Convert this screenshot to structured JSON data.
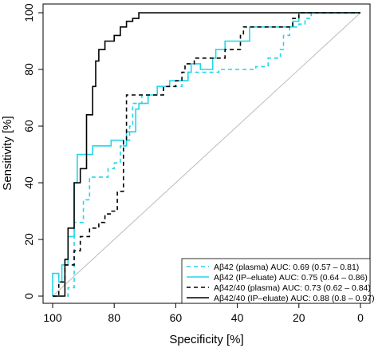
{
  "chart_data": {
    "type": "line",
    "xlabel": "Specificity [%]",
    "ylabel": "Sensitivity [%]",
    "xlim": [
      100,
      0
    ],
    "ylim": [
      0,
      100
    ],
    "x_reversed": true,
    "xticks": [
      "100",
      "80",
      "60",
      "40",
      "20",
      "0"
    ],
    "yticks": [
      "0",
      "20",
      "40",
      "60",
      "80",
      "100"
    ],
    "reference_line": {
      "from": [
        100,
        0
      ],
      "to": [
        0,
        100
      ],
      "color": "#bbbbbb"
    },
    "legend_position": "bottom-right",
    "series": [
      {
        "name": "Aβ42  (plasma) AUC: 0.69 (0.57 – 0.81)",
        "color": "#22d6e8",
        "style": "dashed",
        "points": [
          [
            100,
            0
          ],
          [
            95,
            0
          ],
          [
            95,
            3
          ],
          [
            93,
            3
          ],
          [
            93,
            26
          ],
          [
            90,
            26
          ],
          [
            90,
            34
          ],
          [
            88,
            34
          ],
          [
            88,
            42
          ],
          [
            82,
            42
          ],
          [
            82,
            45
          ],
          [
            80,
            45
          ],
          [
            80,
            47
          ],
          [
            78,
            47
          ],
          [
            78,
            53
          ],
          [
            76,
            53
          ],
          [
            76,
            55
          ],
          [
            75,
            55
          ],
          [
            75,
            60
          ],
          [
            74,
            60
          ],
          [
            74,
            68
          ],
          [
            71,
            68
          ],
          [
            71,
            71
          ],
          [
            64,
            71
          ],
          [
            64,
            74
          ],
          [
            58,
            74
          ],
          [
            58,
            76
          ],
          [
            56,
            76
          ],
          [
            56,
            79
          ],
          [
            46,
            79
          ],
          [
            46,
            80
          ],
          [
            34,
            80
          ],
          [
            34,
            81
          ],
          [
            30,
            81
          ],
          [
            30,
            84
          ],
          [
            26,
            84
          ],
          [
            26,
            87
          ],
          [
            25,
            87
          ],
          [
            25,
            92
          ],
          [
            23,
            92
          ],
          [
            23,
            95
          ],
          [
            20,
            95
          ],
          [
            20,
            96
          ],
          [
            18,
            96
          ],
          [
            18,
            98
          ],
          [
            16,
            98
          ],
          [
            16,
            100
          ],
          [
            0,
            100
          ]
        ]
      },
      {
        "name": "Aβ42  (IP–eluate) AUC: 0.75 (0.64 – 0.86)",
        "color": "#22d6e8",
        "style": "solid",
        "points": [
          [
            100,
            0
          ],
          [
            100,
            8
          ],
          [
            98,
            8
          ],
          [
            98,
            5
          ],
          [
            97,
            5
          ],
          [
            97,
            11
          ],
          [
            95,
            11
          ],
          [
            95,
            21
          ],
          [
            93,
            21
          ],
          [
            93,
            40
          ],
          [
            92,
            40
          ],
          [
            92,
            50
          ],
          [
            87,
            50
          ],
          [
            87,
            53
          ],
          [
            81,
            53
          ],
          [
            81,
            55
          ],
          [
            77,
            55
          ],
          [
            77,
            53
          ],
          [
            76,
            53
          ],
          [
            76,
            58
          ],
          [
            73,
            58
          ],
          [
            73,
            66
          ],
          [
            72,
            66
          ],
          [
            72,
            68
          ],
          [
            69,
            68
          ],
          [
            69,
            71
          ],
          [
            66,
            71
          ],
          [
            66,
            74
          ],
          [
            62,
            74
          ],
          [
            62,
            76
          ],
          [
            56,
            76
          ],
          [
            56,
            79
          ],
          [
            55,
            79
          ],
          [
            55,
            82
          ],
          [
            52,
            82
          ],
          [
            52,
            80
          ],
          [
            48,
            80
          ],
          [
            48,
            84
          ],
          [
            47,
            84
          ],
          [
            47,
            87
          ],
          [
            44,
            87
          ],
          [
            44,
            90
          ],
          [
            36,
            90
          ],
          [
            36,
            95
          ],
          [
            22,
            95
          ],
          [
            22,
            97
          ],
          [
            20,
            97
          ],
          [
            20,
            100
          ],
          [
            0,
            100
          ]
        ]
      },
      {
        "name": "Aβ42/40  (plasma) AUC: 0.73 (0.62 – 0.84)",
        "color": "#000000",
        "style": "dashed",
        "points": [
          [
            100,
            0
          ],
          [
            98,
            0
          ],
          [
            98,
            5
          ],
          [
            96,
            5
          ],
          [
            96,
            11
          ],
          [
            93,
            11
          ],
          [
            93,
            16
          ],
          [
            91,
            16
          ],
          [
            91,
            21
          ],
          [
            88,
            21
          ],
          [
            88,
            24
          ],
          [
            85,
            24
          ],
          [
            85,
            26
          ],
          [
            83,
            26
          ],
          [
            83,
            29
          ],
          [
            81,
            29
          ],
          [
            81,
            30
          ],
          [
            79,
            30
          ],
          [
            79,
            37
          ],
          [
            77,
            37
          ],
          [
            77,
            55
          ],
          [
            76,
            55
          ],
          [
            76,
            71
          ],
          [
            64,
            71
          ],
          [
            64,
            74
          ],
          [
            60,
            74
          ],
          [
            60,
            76
          ],
          [
            58,
            76
          ],
          [
            58,
            79
          ],
          [
            57,
            79
          ],
          [
            57,
            82
          ],
          [
            54,
            82
          ],
          [
            54,
            84
          ],
          [
            44,
            84
          ],
          [
            44,
            87
          ],
          [
            39,
            87
          ],
          [
            39,
            92
          ],
          [
            38,
            92
          ],
          [
            38,
            95
          ],
          [
            22,
            95
          ],
          [
            22,
            98
          ],
          [
            20,
            98
          ],
          [
            20,
            100
          ],
          [
            0,
            100
          ]
        ]
      },
      {
        "name": "Aβ42/40  (IP–eluate) AUC: 0.88 (0.8 – 0.97)",
        "color": "#000000",
        "style": "solid",
        "points": [
          [
            100,
            0
          ],
          [
            96,
            0
          ],
          [
            96,
            13
          ],
          [
            95,
            13
          ],
          [
            95,
            24
          ],
          [
            93,
            24
          ],
          [
            93,
            40
          ],
          [
            91,
            40
          ],
          [
            91,
            45
          ],
          [
            89,
            45
          ],
          [
            89,
            64
          ],
          [
            87,
            64
          ],
          [
            87,
            74
          ],
          [
            86,
            74
          ],
          [
            86,
            83
          ],
          [
            85,
            83
          ],
          [
            85,
            87
          ],
          [
            83,
            87
          ],
          [
            83,
            90
          ],
          [
            80,
            90
          ],
          [
            80,
            92
          ],
          [
            78,
            92
          ],
          [
            78,
            95
          ],
          [
            76,
            95
          ],
          [
            76,
            97
          ],
          [
            74,
            97
          ],
          [
            74,
            98
          ],
          [
            72,
            98
          ],
          [
            72,
            100
          ],
          [
            0,
            100
          ]
        ]
      }
    ]
  }
}
